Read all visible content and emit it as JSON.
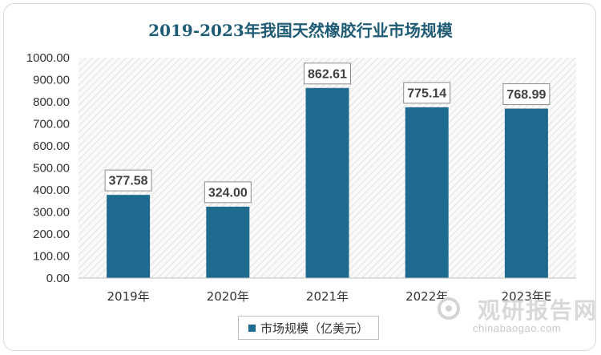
{
  "chart_data": {
    "type": "bar",
    "title": "2019-2023年我国天然橡胶行业市场规模",
    "categories": [
      "2019年",
      "2020年",
      "2021年",
      "2022年",
      "2023年E"
    ],
    "series": [
      {
        "name": "市场规模（亿美元）",
        "values": [
          377.58,
          324.0,
          862.61,
          775.14,
          768.99
        ]
      }
    ],
    "data_labels": [
      "377.58",
      "324.00",
      "862.61",
      "775.14",
      "768.99"
    ],
    "y_ticks": [
      "0.00",
      "100.00",
      "200.00",
      "300.00",
      "400.00",
      "500.00",
      "600.00",
      "700.00",
      "800.00",
      "900.00",
      "1000.00"
    ],
    "ylim": [
      0,
      1000
    ],
    "grid": false,
    "legend_position": "bottom",
    "bar_color": "#1f6b8f",
    "plot_background": "hatched light gray"
  },
  "legend": {
    "label": "市场规模（亿美元）"
  },
  "watermark": {
    "cn": "观研报告网",
    "en": "chinabaogao.com"
  }
}
